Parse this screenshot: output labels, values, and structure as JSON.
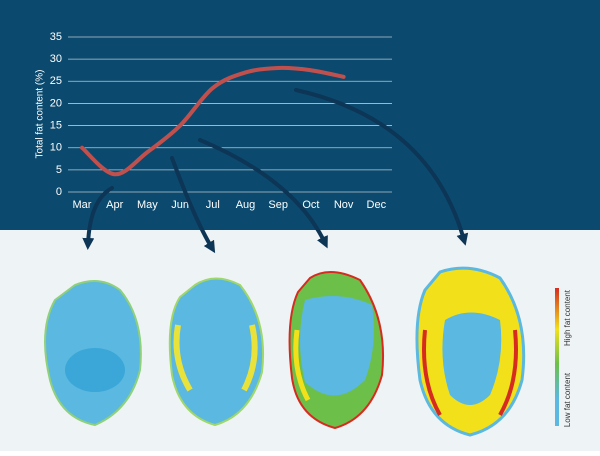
{
  "chart_data": {
    "type": "line",
    "y_label": "Total fat content (%)",
    "categories": [
      "Mar",
      "Apr",
      "May",
      "Jun",
      "Jul",
      "Aug",
      "Sep",
      "Oct",
      "Nov",
      "Dec"
    ],
    "series": [
      {
        "name": "Total fat content",
        "color": "#c0504d",
        "values": [
          10,
          4,
          9,
          15,
          23.5,
          27,
          28,
          27.5,
          26,
          null
        ]
      }
    ],
    "ylim": [
      0,
      35
    ],
    "yticks": [
      0,
      5,
      10,
      15,
      20,
      25,
      30,
      35
    ],
    "grid": true,
    "legend": {
      "high": "High fat content",
      "low": "Low fat content"
    }
  }
}
